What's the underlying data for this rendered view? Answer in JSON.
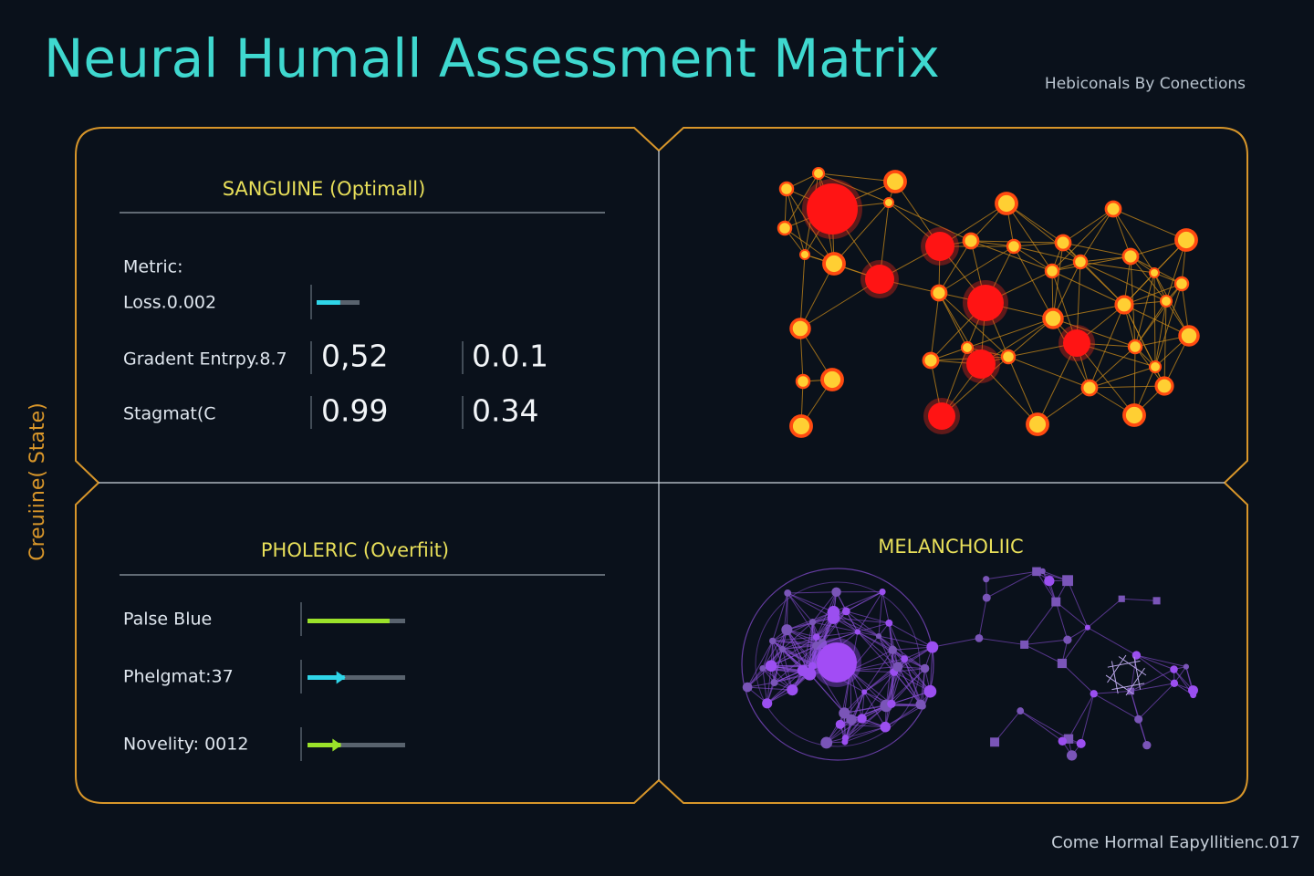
{
  "header": {
    "title": "Neural Humall Assessment Matrix",
    "subtitle": "Hebiconals By Conections"
  },
  "side_label": "Creuiine( State)",
  "footer": "Come Hormal Eapyllitienc.017",
  "sanguine": {
    "title": "SANGUINE (Optimall)",
    "metric_label": "Metric:",
    "rows": [
      {
        "label": "Loss.0.002",
        "bar": 55
      },
      {
        "label": "Gradent Entrpy.8.7",
        "cells": [
          "0,52",
          "0.0.1"
        ]
      },
      {
        "label": "Stagmat(C",
        "cells": [
          "0.99",
          "0.34"
        ]
      }
    ]
  },
  "pholeric": {
    "title": "PHOLERIC (Overfiit)",
    "rows": [
      {
        "label": "Palse Blue",
        "bar": 84
      },
      {
        "label": "Phelgmat:37",
        "bar": 38
      },
      {
        "label": "Novelity: 0012",
        "bar": 34
      }
    ]
  },
  "melancholic": {
    "title": "MELANCHOLIIC"
  }
}
